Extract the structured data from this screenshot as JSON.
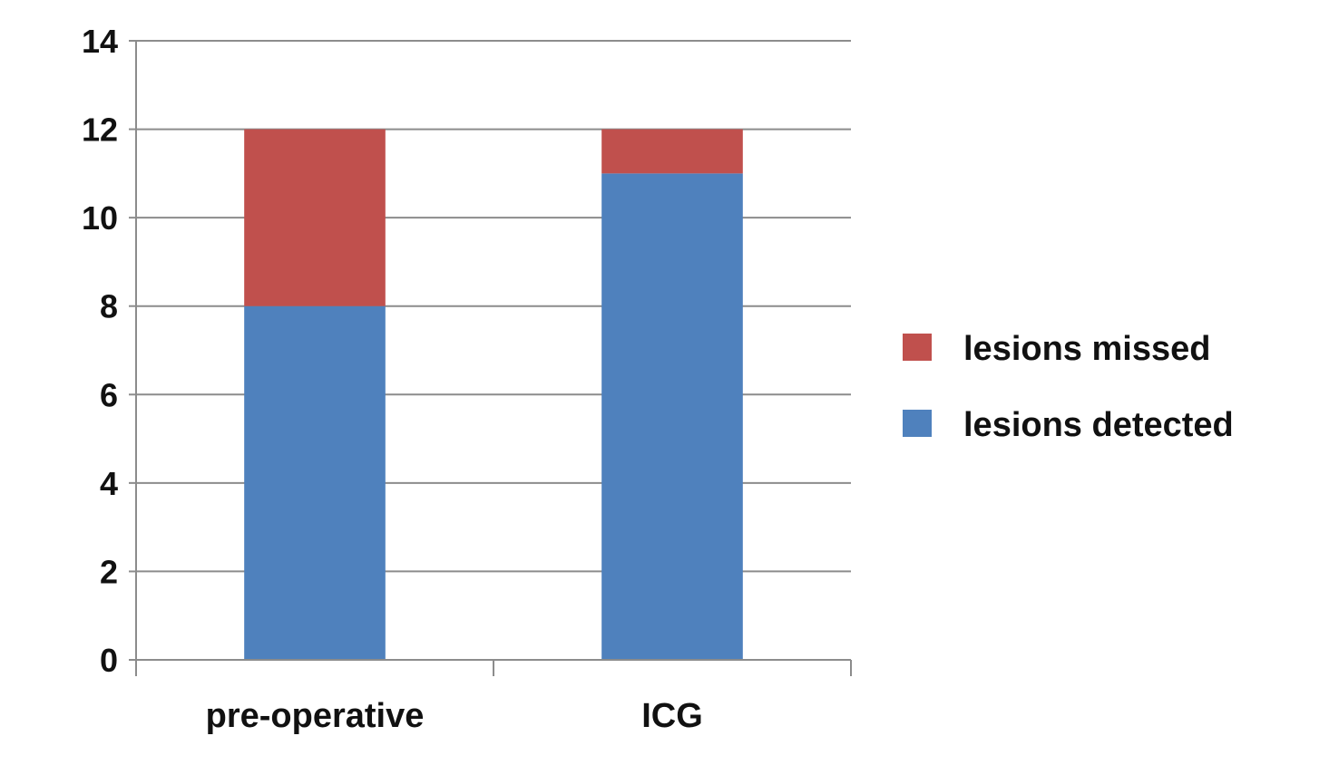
{
  "chart_data": {
    "type": "bar",
    "stacked": true,
    "categories": [
      "pre-operative",
      "ICG"
    ],
    "series": [
      {
        "name": "lesions detected",
        "values": [
          8,
          11
        ],
        "color": "#4f81bd"
      },
      {
        "name": "lesions missed",
        "values": [
          4,
          1
        ],
        "color": "#c0504d"
      }
    ],
    "ylim": [
      0,
      14
    ],
    "yticks": [
      0,
      2,
      4,
      6,
      8,
      10,
      12,
      14
    ],
    "grid": true,
    "legend_position": "right",
    "legend_order": [
      "lesions missed",
      "lesions detected"
    ],
    "title": "",
    "xlabel": "",
    "ylabel": ""
  }
}
